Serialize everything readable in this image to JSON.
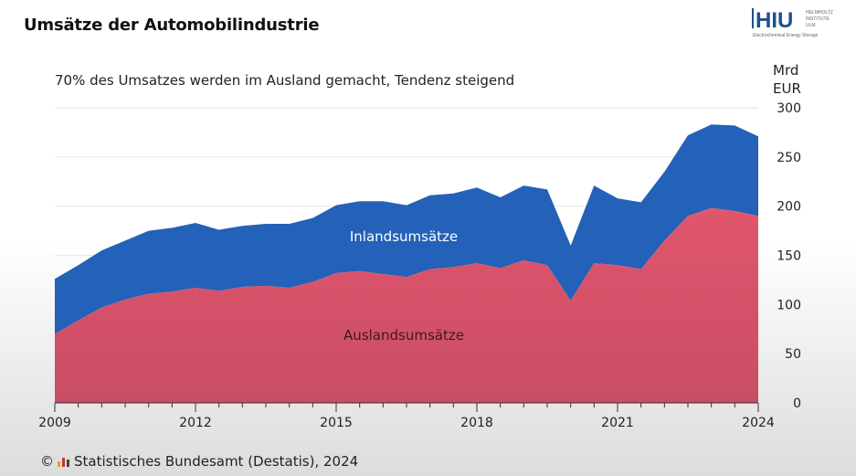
{
  "header": {
    "title": "Umsätze der Automobilindustrie",
    "logo_text": "HIU",
    "logo_side_lines": [
      "HELMHOLTZ",
      "INSTITUTE",
      "ULM"
    ],
    "logo_tagline": "Electrochemical Energy Storage"
  },
  "subtitle": "70% des Umsatzes werden im Ausland gemacht, Tendenz steigend",
  "unit_lines": [
    "Mrd",
    "EUR"
  ],
  "source": {
    "copyright": "©",
    "text": "Statistisches Bundesamt (Destatis), 2024"
  },
  "colors": {
    "inland": "#2461b8",
    "ausland": "#e0566c",
    "ausland_dark": "#c94d66",
    "inland_label": "#ffffff",
    "ausland_label": "#3a1a22"
  },
  "chart_data": {
    "type": "area",
    "stacked": true,
    "x": [
      2009,
      2009.5,
      2010,
      2010.5,
      2011,
      2011.5,
      2012,
      2012.5,
      2013,
      2013.5,
      2014,
      2014.5,
      2015,
      2015.5,
      2016,
      2016.5,
      2017,
      2017.5,
      2018,
      2018.5,
      2019,
      2019.5,
      2020,
      2020.5,
      2021,
      2021.5,
      2022,
      2022.5,
      2023,
      2023.5,
      2024
    ],
    "series": [
      {
        "name": "Auslandsumsätze",
        "values": [
          70,
          84,
          97,
          105,
          111,
          113,
          117,
          114,
          118,
          119,
          117,
          123,
          132,
          134,
          131,
          128,
          136,
          138,
          142,
          137,
          145,
          140,
          104,
          142,
          140,
          136,
          165,
          190,
          198,
          195,
          190
        ]
      },
      {
        "name": "Inlandsumsätze",
        "values": [
          56,
          56,
          58,
          60,
          64,
          65,
          66,
          62,
          62,
          63,
          65,
          65,
          69,
          71,
          74,
          73,
          75,
          75,
          77,
          72,
          76,
          77,
          56,
          79,
          68,
          68,
          70,
          82,
          85,
          87,
          81
        ]
      }
    ],
    "xticks": [
      "2009",
      "2012",
      "2015",
      "2018",
      "2021",
      "2024"
    ],
    "xtick_values": [
      2009,
      2012,
      2015,
      2018,
      2021,
      2024
    ],
    "yticks": [
      "0",
      "50",
      "100",
      "150",
      "200",
      "250",
      "300"
    ],
    "ytick_values": [
      0,
      50,
      100,
      150,
      200,
      250,
      300
    ],
    "xlim": [
      2009,
      2024
    ],
    "ylim": [
      0,
      300
    ],
    "grid": true,
    "labels": [
      "Inlandsumsätze",
      "Auslandsumsätze"
    ]
  }
}
